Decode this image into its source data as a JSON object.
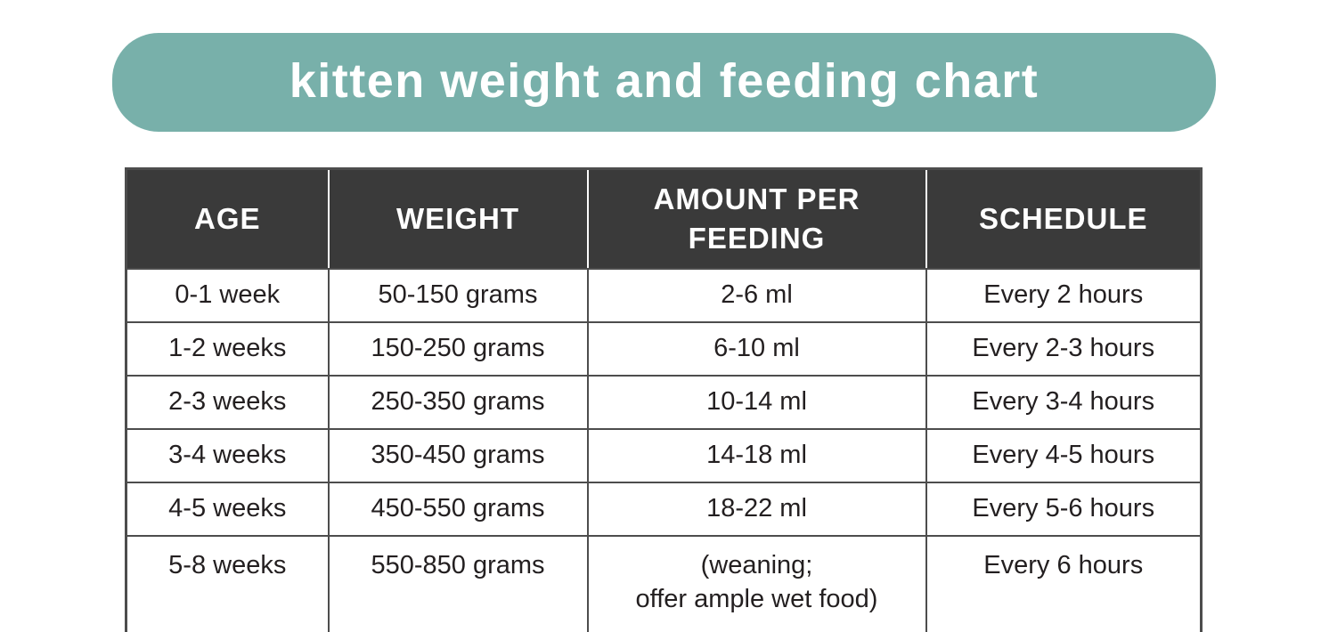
{
  "banner": {
    "title": "kitten weight and feeding chart",
    "background_color": "#78b0aa",
    "text_color": "#ffffff"
  },
  "table": {
    "header_background": "#3a3a3a",
    "header_text_color": "#ffffff",
    "border_color": "#4d4d4d",
    "body_text_color": "#231f20",
    "columns": [
      "AGE",
      "WEIGHT",
      "AMOUNT PER FEEDING",
      "SCHEDULE"
    ],
    "rows": [
      {
        "age": "0-1 week",
        "weight": "50-150 grams",
        "amount": "2-6 ml",
        "schedule": "Every 2 hours"
      },
      {
        "age": "1-2 weeks",
        "weight": "150-250 grams",
        "amount": "6-10 ml",
        "schedule": "Every 2-3 hours"
      },
      {
        "age": "2-3 weeks",
        "weight": "250-350 grams",
        "amount": "10-14 ml",
        "schedule": "Every 3-4 hours"
      },
      {
        "age": "3-4 weeks",
        "weight": "350-450 grams",
        "amount": "14-18 ml",
        "schedule": "Every 4-5 hours"
      },
      {
        "age": "4-5 weeks",
        "weight": "450-550 grams",
        "amount": "18-22 ml",
        "schedule": "Every 5-6 hours"
      },
      {
        "age": "5-8 weeks",
        "weight": "550-850 grams",
        "amount": "(weaning;\noffer ample wet food)",
        "schedule": "Every 6 hours"
      }
    ]
  },
  "chart_data": {
    "type": "table",
    "title": "kitten weight and feeding chart",
    "columns": [
      "AGE",
      "WEIGHT",
      "AMOUNT PER FEEDING",
      "SCHEDULE"
    ],
    "rows": [
      [
        "0-1 week",
        "50-150 grams",
        "2-6 ml",
        "Every 2 hours"
      ],
      [
        "1-2 weeks",
        "150-250 grams",
        "6-10 ml",
        "Every 2-3 hours"
      ],
      [
        "2-3 weeks",
        "250-350 grams",
        "10-14 ml",
        "Every 3-4 hours"
      ],
      [
        "3-4 weeks",
        "350-450 grams",
        "14-18 ml",
        "Every 4-5 hours"
      ],
      [
        "4-5 weeks",
        "450-550 grams",
        "18-22 ml",
        "Every 5-6 hours"
      ],
      [
        "5-8 weeks",
        "550-850 grams",
        "(weaning; offer ample wet food)",
        "Every 6 hours"
      ]
    ]
  }
}
